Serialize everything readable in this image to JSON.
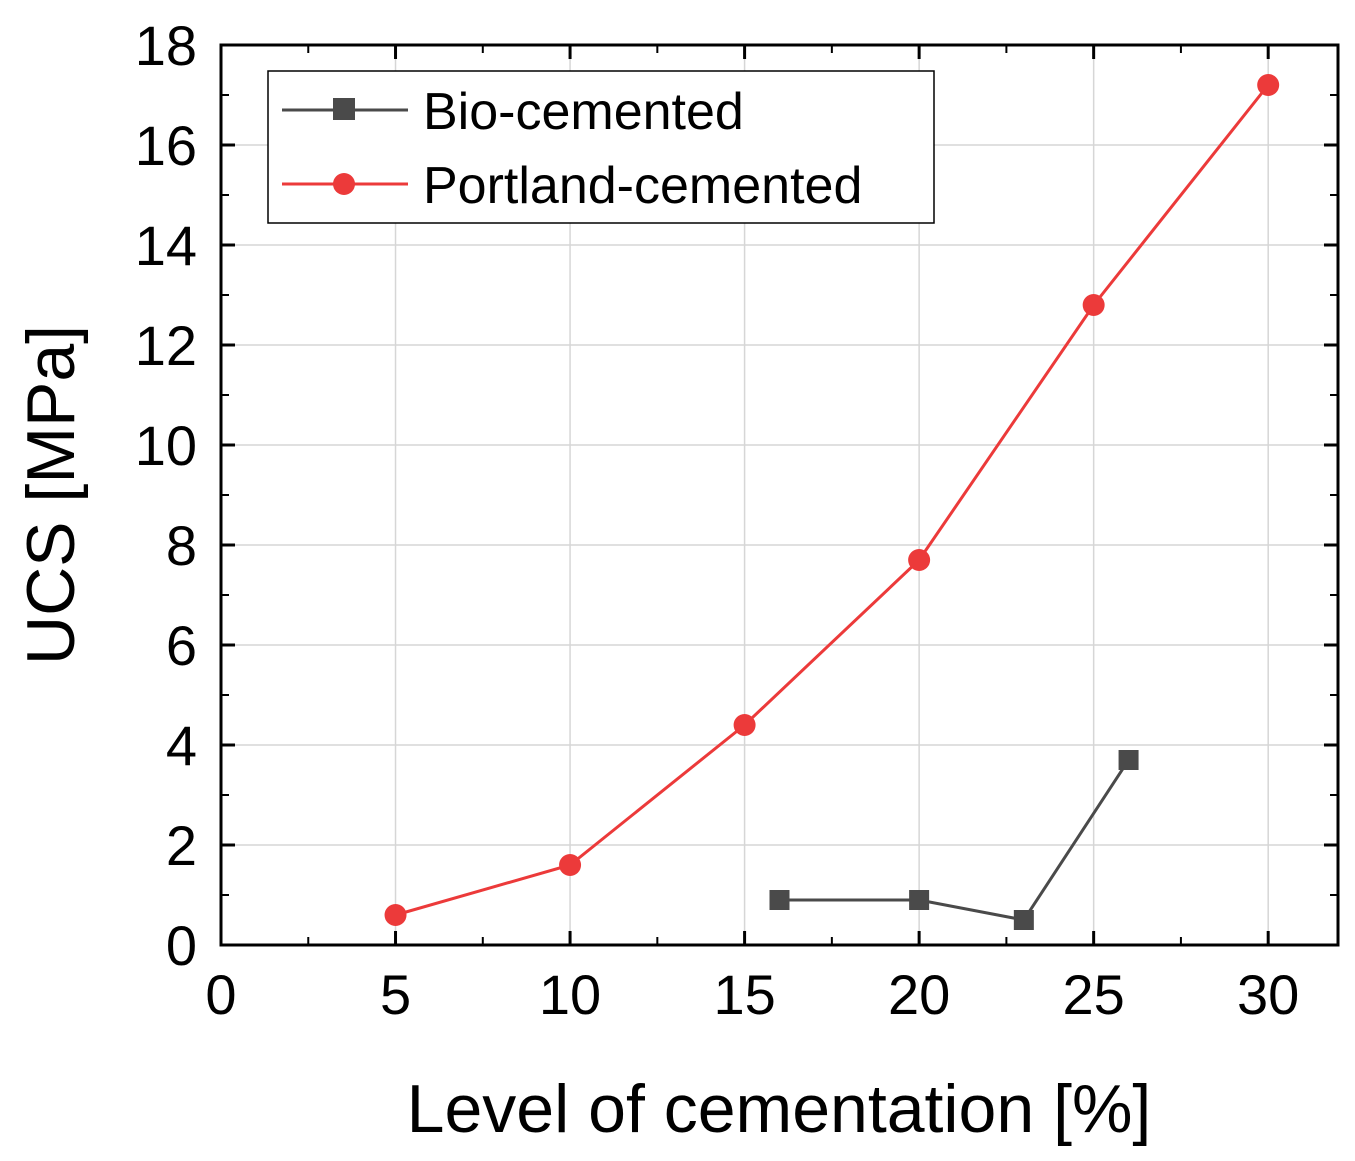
{
  "chart_data": {
    "type": "line",
    "title": "",
    "xlabel": "Level of cementation [%]",
    "ylabel": "UCS [MPa]",
    "xlim": [
      0,
      32
    ],
    "ylim": [
      0,
      18
    ],
    "xticks": [
      0,
      5,
      10,
      15,
      20,
      25,
      30
    ],
    "yticks": [
      0,
      2,
      4,
      6,
      8,
      10,
      12,
      14,
      16,
      18
    ],
    "grid": true,
    "legend_position": "top-left",
    "series": [
      {
        "name": "Bio-cemented",
        "marker": "square",
        "color": "#4a4a4a",
        "x": [
          16,
          20,
          23,
          26
        ],
        "y": [
          0.9,
          0.9,
          0.5,
          3.7
        ]
      },
      {
        "name": "Portland-cemented",
        "marker": "circle",
        "color": "#ec3a3a",
        "x": [
          5,
          10,
          15,
          20,
          25,
          30
        ],
        "y": [
          0.6,
          1.6,
          4.4,
          7.7,
          12.8,
          17.2
        ]
      }
    ]
  }
}
